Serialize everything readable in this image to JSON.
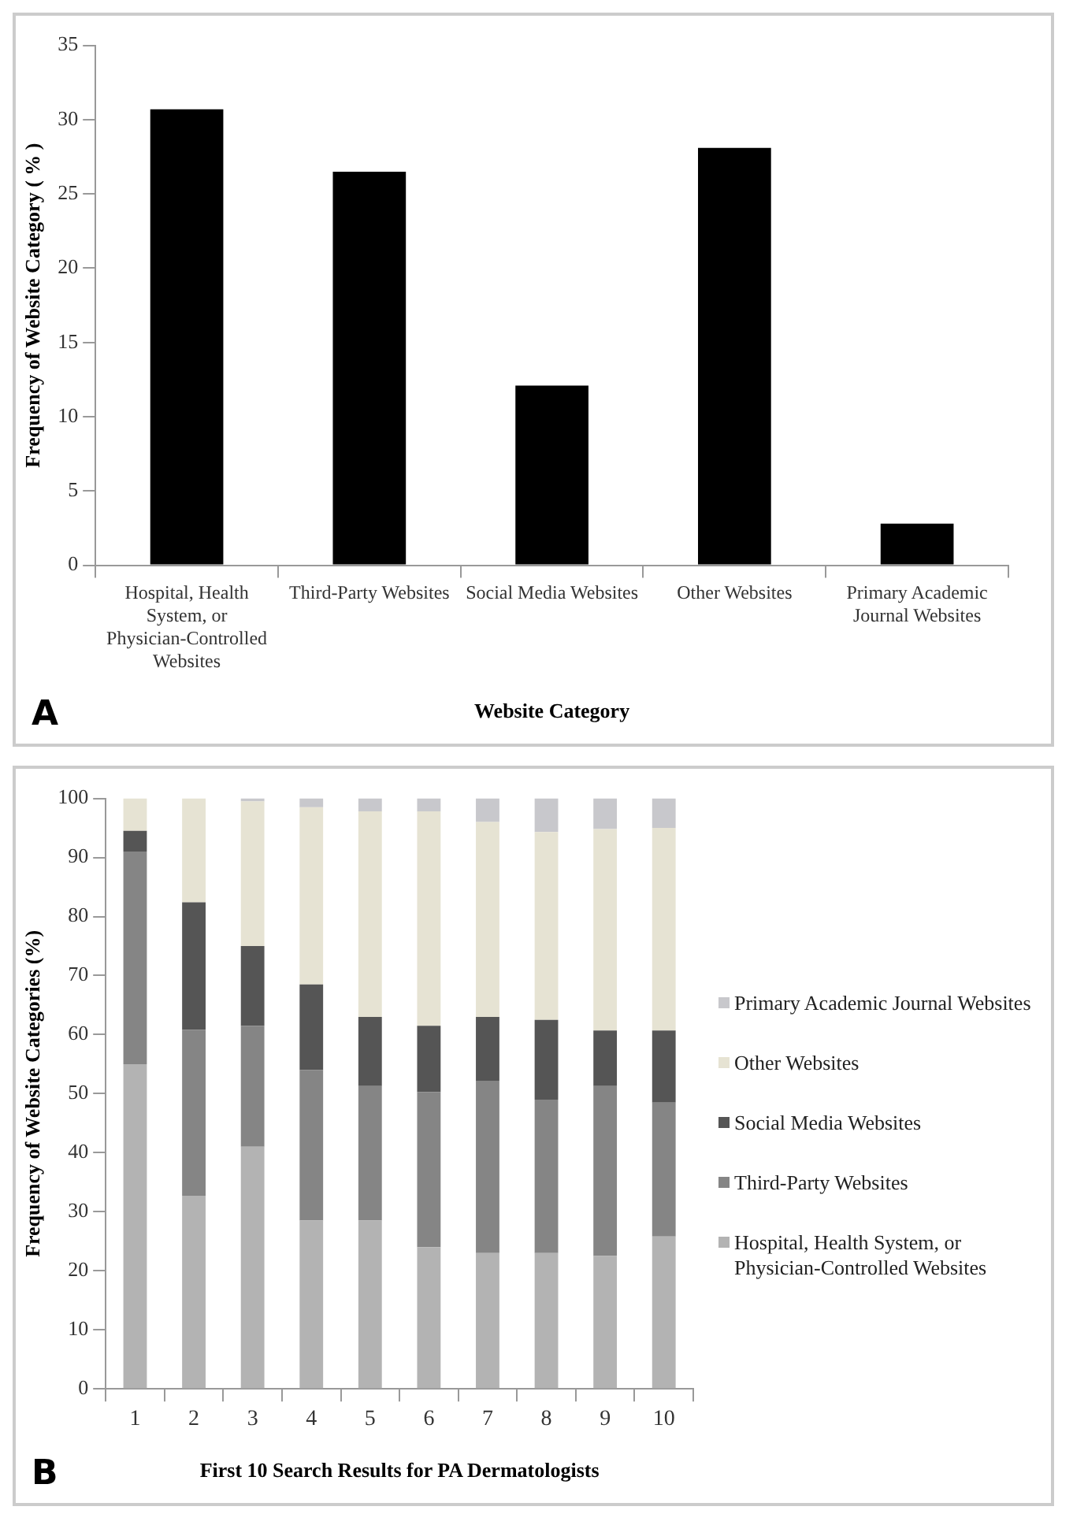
{
  "chart_data": [
    {
      "type": "bar",
      "xlabel": "Website Category",
      "ylabel": "Frequency of Website Category ( % )",
      "categories": [
        "Hospital, Health System, or Physician-Controlled Websites",
        "Third-Party Websites",
        "Social Media Websites",
        "Other Websites",
        "Primary Academic Journal Websites"
      ],
      "values": [
        30.7,
        26.5,
        12.1,
        28.1,
        2.8
      ],
      "color": "#000000",
      "ylim": [
        0,
        35
      ],
      "yticks": [
        0,
        5,
        10,
        15,
        20,
        25,
        30,
        35
      ],
      "grid": false,
      "legend": false,
      "annotations": [
        "A"
      ]
    },
    {
      "type": "bar",
      "stacked": true,
      "xlabel": "First 10 Search Results for PA Dermatologists",
      "ylabel": "Frequency of Website Categories (%)",
      "categories": [
        "1",
        "2",
        "3",
        "4",
        "5",
        "6",
        "7",
        "8",
        "9",
        "10"
      ],
      "ylim": [
        0,
        100
      ],
      "yticks": [
        0,
        10,
        20,
        30,
        40,
        50,
        60,
        70,
        80,
        90,
        100
      ],
      "grid": false,
      "legend": "right",
      "annotations": [
        "B"
      ],
      "series": [
        {
          "name": "Hospital, Health System, or Physician-Controlled Websites",
          "color": "#b3b3b3",
          "values": [
            55,
            32.7,
            41,
            28.5,
            28.5,
            24,
            23,
            23,
            22.5,
            25.8
          ]
        },
        {
          "name": "Third-Party Websites",
          "color": "#858585",
          "values": [
            36,
            28.1,
            20.5,
            25.5,
            22.8,
            26.3,
            29.2,
            26,
            28.8,
            22.7
          ]
        },
        {
          "name": "Social Media Websites",
          "color": "#555555",
          "values": [
            3.5,
            21.6,
            13.5,
            14.5,
            11.7,
            11.2,
            10.8,
            13.5,
            9.4,
            12.2
          ]
        },
        {
          "name": "Other Websites",
          "color": "#e6e3d3",
          "values": [
            5.5,
            17.6,
            24.5,
            30,
            34.8,
            36.3,
            33,
            31.8,
            34.1,
            34.3
          ]
        },
        {
          "name": "Primary Academic Journal Websites",
          "color": "#c8c8cc",
          "values": [
            0,
            0,
            0.5,
            1.5,
            2.2,
            2.2,
            4,
            5.7,
            5.2,
            5
          ]
        }
      ]
    }
  ]
}
